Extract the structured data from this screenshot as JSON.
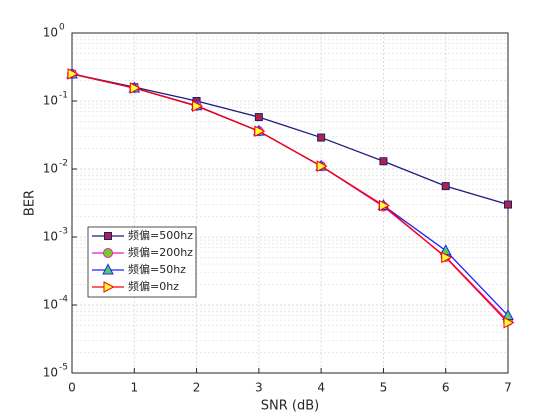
{
  "chart_data": {
    "type": "line",
    "x_label": "SNR (dB)",
    "y_label": "BER",
    "x": [
      0,
      1,
      2,
      3,
      4,
      5,
      6,
      7
    ],
    "xlim": [
      0,
      7
    ],
    "xticks": [
      0,
      1,
      2,
      3,
      4,
      5,
      6,
      7
    ],
    "ylim": [
      1e-05,
      1
    ],
    "yticks": [
      {
        "value": 1e-05,
        "label": "10",
        "exponent": "-5"
      },
      {
        "value": 0.0001,
        "label": "10",
        "exponent": "-4"
      },
      {
        "value": 0.001,
        "label": "10",
        "exponent": "-3"
      },
      {
        "value": 0.01,
        "label": "10",
        "exponent": "-2"
      },
      {
        "value": 0.1,
        "label": "10",
        "exponent": "-1"
      },
      {
        "value": 1,
        "label": "10",
        "exponent": "0"
      }
    ],
    "y_scale": "log",
    "grid": true,
    "minor_grid": true,
    "legend_position": "lower-left",
    "series": [
      {
        "name": "频偏=500hz",
        "color": "#1c1c80",
        "marker": "square",
        "marker_fill": "#b0243f",
        "values": [
          0.25,
          0.16,
          0.1,
          0.058,
          0.029,
          0.013,
          0.0056,
          0.003
        ]
      },
      {
        "name": "频偏=200hz",
        "color": "#e020c0",
        "marker": "circle",
        "marker_fill": "#77cc22",
        "values": [
          0.25,
          0.155,
          0.085,
          0.036,
          0.011,
          0.0028,
          0.00051,
          5.8e-05
        ]
      },
      {
        "name": "频偏=50hz",
        "color": "#2020ff",
        "marker": "triangle-up",
        "marker_fill": "#55cc55",
        "values": [
          0.25,
          0.155,
          0.085,
          0.036,
          0.011,
          0.0029,
          0.00063,
          7e-05
        ]
      },
      {
        "name": "频偏=0hz",
        "color": "#ff0000",
        "marker": "triangle-right",
        "marker_fill": "#ffff33",
        "values": [
          0.25,
          0.155,
          0.084,
          0.036,
          0.011,
          0.0029,
          0.0005,
          5.5e-05
        ]
      }
    ]
  }
}
